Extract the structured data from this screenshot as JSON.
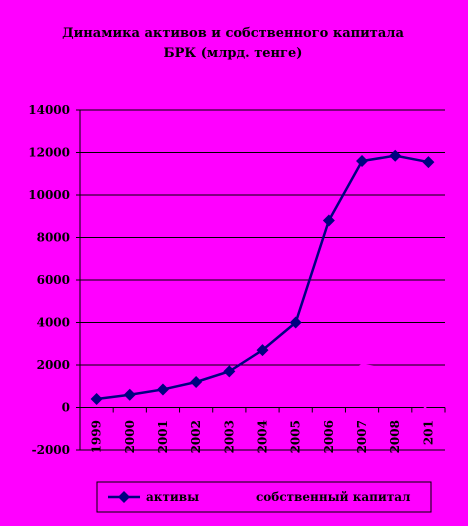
{
  "chart_data": {
    "type": "line",
    "title": "Динамика активов и собственного капитала",
    "subtitle": "БРК (млрд. тенге)",
    "categories": [
      "1999",
      "2000",
      "2001",
      "2002",
      "2003",
      "2004",
      "2005",
      "2006",
      "2007",
      "2008",
      "201"
    ],
    "ylim": [
      -2000,
      14000
    ],
    "yticks": [
      "14000",
      "12000",
      "10000",
      "8000",
      "6000",
      "4000",
      "2000",
      "0",
      "-2000"
    ],
    "grid": true,
    "legend_position": "bottom",
    "series": [
      {
        "name": "активы",
        "values": [
          400,
          600,
          850,
          1200,
          1700,
          2700,
          4000,
          8800,
          11600,
          11850,
          11550
        ],
        "color": "#000080",
        "marker": "diamond"
      },
      {
        "name": "собственный капитал",
        "values": [
          300,
          400,
          450,
          500,
          550,
          600,
          700,
          1200,
          2000,
          1800,
          -200
        ],
        "color": "#ff00ff",
        "marker": "none"
      }
    ]
  }
}
